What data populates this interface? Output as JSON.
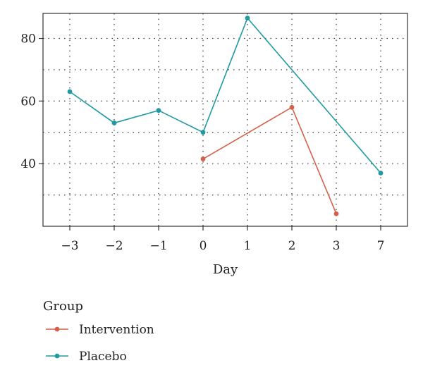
{
  "chart_data": {
    "type": "line",
    "xlabel": "Day",
    "ylabel": "",
    "categories": [
      "−3",
      "−2",
      "−1",
      "0",
      "1",
      "2",
      "3",
      "7"
    ],
    "yticks": [
      40,
      60,
      80
    ],
    "ylim": [
      20,
      88
    ],
    "grid": true,
    "legend": {
      "title": "Group",
      "placement": "bottom-left"
    },
    "series": [
      {
        "name": "Intervention",
        "color": "#d5604a",
        "points": [
          {
            "x": "0",
            "y": 41.5
          },
          {
            "x": "2",
            "y": 58
          },
          {
            "x": "3",
            "y": 24
          }
        ]
      },
      {
        "name": "Placebo",
        "color": "#1f9aa3",
        "points": [
          {
            "x": "−3",
            "y": 63
          },
          {
            "x": "−2",
            "y": 53
          },
          {
            "x": "−1",
            "y": 57
          },
          {
            "x": "0",
            "y": 50
          },
          {
            "x": "1",
            "y": 86.5
          },
          {
            "x": "7",
            "y": 37
          }
        ]
      }
    ]
  }
}
